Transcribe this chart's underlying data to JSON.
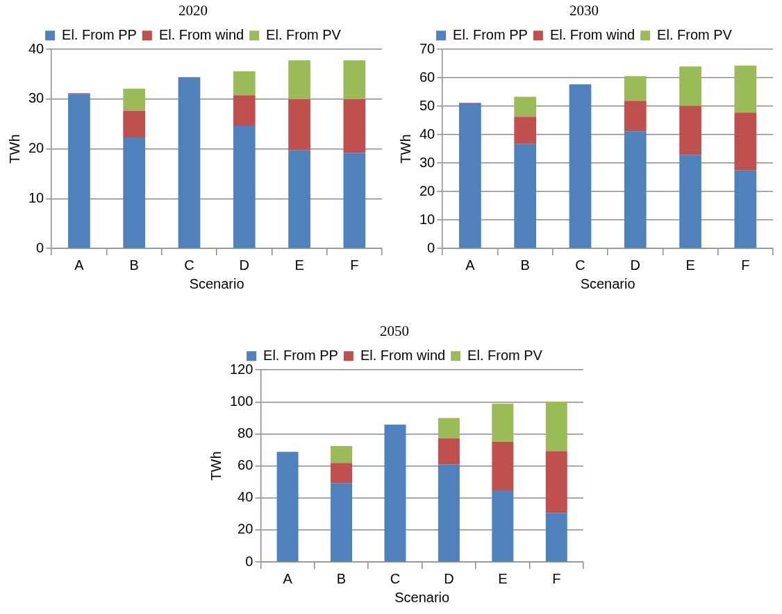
{
  "chart_data": [
    {
      "type": "bar",
      "title": "2020",
      "xlabel": "Scenario",
      "ylabel": "TWh",
      "categories": [
        "A",
        "B",
        "C",
        "D",
        "E",
        "F"
      ],
      "stacked": true,
      "ylim": [
        0,
        40
      ],
      "yticks": [
        0,
        10,
        20,
        30,
        40
      ],
      "grid": "y",
      "legend": "top",
      "series": [
        {
          "name": "El. From PP",
          "color": "#4f81bd",
          "values": [
            31,
            22.3,
            34.3,
            24.7,
            19.7,
            19.2
          ]
        },
        {
          "name": "El. From wind",
          "color": "#c0504d",
          "values": [
            0.2,
            5.4,
            0.1,
            6.1,
            10.3,
            10.8
          ]
        },
        {
          "name": "El. From PV",
          "color": "#9bbb59",
          "values": [
            0,
            4.4,
            0,
            4.8,
            7.8,
            7.8
          ]
        }
      ]
    },
    {
      "type": "bar",
      "title": "2030",
      "xlabel": "Scenario",
      "ylabel": "TWh",
      "categories": [
        "A",
        "B",
        "C",
        "D",
        "E",
        "F"
      ],
      "stacked": true,
      "ylim": [
        0,
        70
      ],
      "yticks": [
        0,
        10,
        20,
        30,
        40,
        50,
        60,
        70
      ],
      "grid": "y",
      "legend": "top",
      "series": [
        {
          "name": "El. From PP",
          "color": "#4f81bd",
          "values": [
            51,
            36.7,
            57.7,
            41.2,
            32.9,
            27.4
          ]
        },
        {
          "name": "El. From wind",
          "color": "#c0504d",
          "values": [
            0.2,
            9.6,
            null,
            10.7,
            17.2,
            20.4
          ]
        },
        {
          "name": "El. From PV",
          "color": "#9bbb59",
          "values": [
            0,
            7,
            0,
            8.7,
            13.9,
            16.5
          ]
        }
      ]
    },
    {
      "type": "bar",
      "title": "2050",
      "xlabel": "Scenario",
      "ylabel": "TWh",
      "categories": [
        "A",
        "B",
        "C",
        "D",
        "E",
        "F"
      ],
      "stacked": true,
      "ylim": [
        0,
        120
      ],
      "yticks": [
        0,
        20,
        40,
        60,
        80,
        100,
        120
      ],
      "grid": "y",
      "legend": "top",
      "series": [
        {
          "name": "El. From PP",
          "color": "#4f81bd",
          "values": [
            68.8,
            49.1,
            85.8,
            60.9,
            44.6,
            30.7
          ]
        },
        {
          "name": "El. From wind",
          "color": "#c0504d",
          "values": [
            null,
            12.8,
            null,
            16.3,
            30.4,
            38.6
          ]
        },
        {
          "name": "El. From PV",
          "color": "#9bbb59",
          "values": [
            0,
            10.5,
            0,
            12.8,
            24,
            31
          ]
        }
      ]
    }
  ]
}
